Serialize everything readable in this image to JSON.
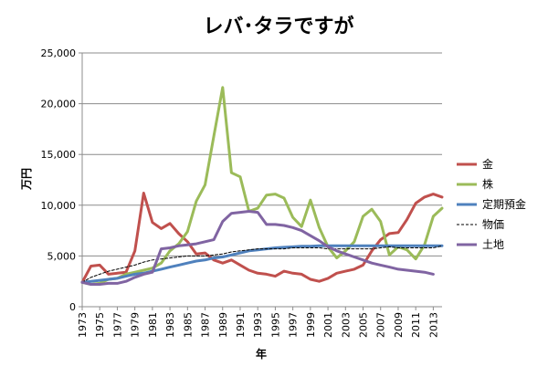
{
  "chart_data": {
    "type": "line",
    "title": "レバ･タラですが",
    "xlabel": "年",
    "ylabel": "万円",
    "ylim": [
      0,
      25000
    ],
    "yticks": [
      0,
      5000,
      10000,
      15000,
      20000,
      25000
    ],
    "ytick_labels": [
      "0",
      "5,000",
      "10,000",
      "15,000",
      "20,000",
      "25,000"
    ],
    "xlim": [
      1973,
      2014
    ],
    "xticks": [
      1973,
      1975,
      1977,
      1979,
      1981,
      1983,
      1985,
      1987,
      1989,
      1991,
      1993,
      1995,
      1997,
      1999,
      2001,
      2003,
      2005,
      2007,
      2009,
      2011,
      2013
    ],
    "grid": "horizontal",
    "legend_position": "right",
    "series": [
      {
        "name": "金",
        "color": "#c0504d",
        "style": "solid",
        "x": [
          1973,
          1974,
          1975,
          1976,
          1977,
          1978,
          1979,
          1980,
          1981,
          1982,
          1983,
          1984,
          1985,
          1986,
          1987,
          1988,
          1989,
          1990,
          1991,
          1992,
          1993,
          1994,
          1995,
          1996,
          1997,
          1998,
          1999,
          2000,
          2001,
          2002,
          2003,
          2004,
          2005,
          2006,
          2007,
          2008,
          2009,
          2010,
          2011,
          2012,
          2013,
          2014
        ],
        "y": [
          2400,
          4000,
          4100,
          3200,
          3300,
          3400,
          5500,
          11200,
          8300,
          7700,
          8200,
          7200,
          6400,
          5200,
          5300,
          4600,
          4300,
          4600,
          4100,
          3600,
          3300,
          3200,
          3000,
          3500,
          3300,
          3200,
          2700,
          2500,
          2800,
          3300,
          3500,
          3700,
          4100,
          5500,
          6600,
          7200,
          7300,
          8600,
          10200,
          10800,
          11100,
          10800
        ]
      },
      {
        "name": "株",
        "color": "#9bbb59",
        "style": "solid",
        "x": [
          1973,
          1974,
          1975,
          1976,
          1977,
          1978,
          1979,
          1980,
          1981,
          1982,
          1983,
          1984,
          1985,
          1986,
          1987,
          1988,
          1989,
          1990,
          1991,
          1992,
          1993,
          1994,
          1995,
          1996,
          1997,
          1998,
          1999,
          2000,
          2001,
          2002,
          2003,
          2004,
          2005,
          2006,
          2007,
          2008,
          2009,
          2010,
          2011,
          2012,
          2013,
          2014
        ],
        "y": [
          2400,
          2200,
          2300,
          2700,
          2800,
          3200,
          3400,
          3600,
          3800,
          4300,
          5500,
          6200,
          7400,
          10400,
          12000,
          16800,
          21600,
          13200,
          12800,
          9400,
          9700,
          11000,
          11100,
          10700,
          8800,
          7900,
          10500,
          7800,
          5900,
          4800,
          5500,
          6400,
          8900,
          9600,
          8400,
          5100,
          5900,
          5600,
          4700,
          6100,
          8900,
          9700
        ]
      },
      {
        "name": "定期預金",
        "color": "#4f81bd",
        "style": "solid",
        "x": [
          1973,
          1974,
          1975,
          1976,
          1977,
          1978,
          1979,
          1980,
          1981,
          1982,
          1983,
          1984,
          1985,
          1986,
          1987,
          1988,
          1989,
          1990,
          1991,
          1992,
          1993,
          1994,
          1995,
          1996,
          1997,
          1998,
          1999,
          2000,
          2001,
          2002,
          2003,
          2004,
          2005,
          2006,
          2007,
          2008,
          2009,
          2010,
          2011,
          2012,
          2013,
          2014
        ],
        "y": [
          2400,
          2500,
          2600,
          2700,
          2800,
          3000,
          3200,
          3300,
          3500,
          3700,
          3900,
          4100,
          4300,
          4500,
          4600,
          4800,
          4900,
          5100,
          5300,
          5500,
          5600,
          5700,
          5800,
          5850,
          5900,
          5950,
          5950,
          6000,
          6000,
          6000,
          6000,
          6000,
          6000,
          6000,
          6000,
          6000,
          6000,
          6000,
          6000,
          6000,
          6000,
          6000
        ]
      },
      {
        "name": "物価",
        "color": "#000000",
        "style": "dashed",
        "x": [
          1973,
          1974,
          1975,
          1976,
          1977,
          1978,
          1979,
          1980,
          1981,
          1982,
          1983,
          1984,
          1985,
          1986,
          1987,
          1988,
          1989,
          1990,
          1991,
          1992,
          1993,
          1994,
          1995,
          1996,
          1997,
          1998,
          1999,
          2000,
          2001,
          2002,
          2003,
          2004,
          2005,
          2006,
          2007,
          2008,
          2009,
          2010,
          2011,
          2012,
          2013,
          2014
        ],
        "y": [
          2400,
          2900,
          3200,
          3500,
          3700,
          3900,
          4100,
          4400,
          4600,
          4700,
          4800,
          4900,
          5000,
          5000,
          5000,
          5100,
          5200,
          5400,
          5500,
          5600,
          5700,
          5700,
          5700,
          5700,
          5800,
          5800,
          5800,
          5800,
          5700,
          5700,
          5700,
          5700,
          5700,
          5700,
          5800,
          5900,
          5800,
          5800,
          5800,
          5800,
          5800,
          6000
        ]
      },
      {
        "name": "土地",
        "color": "#8064a2",
        "style": "solid",
        "x": [
          1973,
          1974,
          1975,
          1976,
          1977,
          1978,
          1979,
          1980,
          1981,
          1982,
          1983,
          1984,
          1985,
          1986,
          1987,
          1988,
          1989,
          1990,
          1991,
          1992,
          1993,
          1994,
          1995,
          1996,
          1997,
          1998,
          1999,
          2000,
          2001,
          2002,
          2003,
          2004,
          2005,
          2006,
          2007,
          2008,
          2009,
          2010,
          2011,
          2012,
          2013
        ],
        "y": [
          2400,
          2200,
          2200,
          2300,
          2300,
          2500,
          2900,
          3200,
          3400,
          5700,
          5800,
          6000,
          6100,
          6200,
          6400,
          6600,
          8400,
          9200,
          9300,
          9400,
          9300,
          8100,
          8100,
          8000,
          7800,
          7500,
          7000,
          6500,
          5900,
          5500,
          5200,
          4900,
          4600,
          4300,
          4100,
          3900,
          3700,
          3600,
          3500,
          3400,
          3200
        ]
      }
    ]
  }
}
